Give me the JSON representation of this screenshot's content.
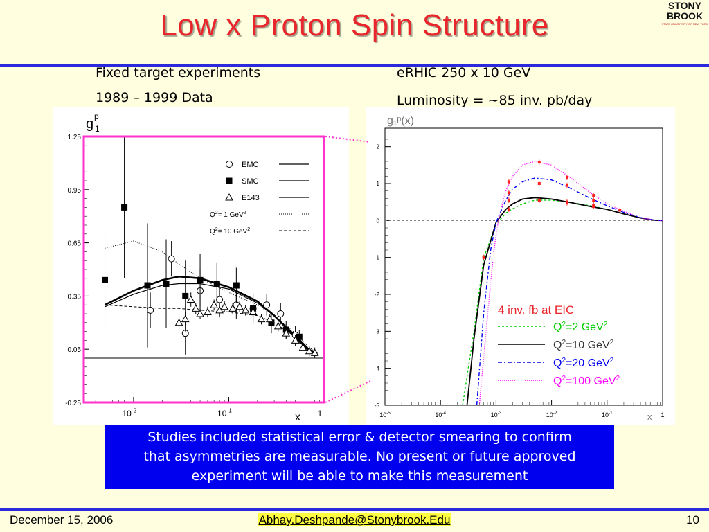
{
  "slide": {
    "title": "Low x Proton Spin Structure",
    "logo_line1": "STONY",
    "logo_line2": "BROOK",
    "logo_sub": "STATE UNIVERSITY OF NEW YORK",
    "left_heading1": "Fixed target experiments",
    "left_heading2": "1989 – 1999 Data",
    "right_heading1": "eRHIC 250 x 10 GeV",
    "right_heading2": "Luminosity = ~85 inv. pb/day",
    "caption": [
      "Studies included statistical error & detector smearing to confirm",
      "that asymmetries are measurable.  No present or future approved",
      "experiment will be able to make this measurement"
    ],
    "footer_date": "December 15, 2006",
    "footer_email": "Abhay.Deshpande@Stonybrook.Edu",
    "footer_page": "10",
    "colors": {
      "title": "#e8262b",
      "rule": "#2a2adc",
      "caption_bg": "#0000ee",
      "frame": "#ff33cc"
    }
  },
  "chart_data": [
    {
      "type": "scatter",
      "y_title_main": "g",
      "y_title_sup": "p",
      "y_title_sub": "1",
      "xlabel": "x",
      "x_scale": "log",
      "xlim": [
        0.003,
        1
      ],
      "ylim": [
        -0.25,
        1.25
      ],
      "y_ticks": [
        "1.25",
        "0.95",
        "0.65",
        "0.35",
        "0.05",
        "-0.25"
      ],
      "y_tick_values": [
        1.25,
        0.95,
        0.65,
        0.35,
        0.05,
        -0.25
      ],
      "x_ticks": [
        {
          "base": "10",
          "exp": "-2",
          "value": 0.01
        },
        {
          "base": "10",
          "exp": "-1",
          "value": 0.1
        },
        {
          "base": "1",
          "exp": "",
          "value": 1
        }
      ],
      "legend": [
        {
          "marker": "circle",
          "label": "EMC"
        },
        {
          "marker": "square",
          "label": "SMC"
        },
        {
          "marker": "triangle",
          "label": "E143"
        },
        {
          "marker": "dotted",
          "label_main": "Q",
          "label_sup": "2",
          "label_rest": "= 1 GeV",
          "label_sup2": "2"
        },
        {
          "marker": "dashed",
          "label_main": "Q",
          "label_sup": "2",
          "label_rest": "= 10 GeV",
          "label_sup2": "2"
        }
      ],
      "series": [
        {
          "name": "EMC",
          "marker": "circle",
          "points": [
            [
              0.015,
              0.27,
              0.1
            ],
            [
              0.025,
              0.56,
              0.1
            ],
            [
              0.035,
              0.14,
              0.12
            ],
            [
              0.05,
              0.38,
              0.12
            ],
            [
              0.08,
              0.33,
              0.1
            ],
            [
              0.12,
              0.3,
              0.08
            ],
            [
              0.18,
              0.28,
              0.08
            ],
            [
              0.25,
              0.3,
              0.06
            ],
            [
              0.35,
              0.25,
              0.06
            ],
            [
              0.5,
              0.13,
              0.05
            ]
          ]
        },
        {
          "name": "SMC",
          "marker": "square",
          "points": [
            [
              0.005,
              0.44,
              0.3
            ],
            [
              0.008,
              0.85,
              0.4
            ],
            [
              0.014,
              0.41,
              0.35
            ],
            [
              0.022,
              0.42,
              0.25
            ],
            [
              0.035,
              0.35,
              0.2
            ],
            [
              0.05,
              0.44,
              0.15
            ],
            [
              0.075,
              0.42,
              0.12
            ],
            [
              0.12,
              0.41,
              0.1
            ],
            [
              0.18,
              0.28,
              0.08
            ],
            [
              0.28,
              0.2,
              0.06
            ],
            [
              0.4,
              0.16,
              0.05
            ],
            [
              0.55,
              0.12,
              0.04
            ]
          ]
        },
        {
          "name": "E143",
          "marker": "triangle",
          "points": [
            [
              0.03,
              0.2,
              0.04
            ],
            [
              0.035,
              0.22,
              0.04
            ],
            [
              0.04,
              0.33,
              0.04
            ],
            [
              0.045,
              0.28,
              0.03
            ],
            [
              0.05,
              0.25,
              0.03
            ],
            [
              0.06,
              0.26,
              0.03
            ],
            [
              0.07,
              0.3,
              0.03
            ],
            [
              0.08,
              0.27,
              0.03
            ],
            [
              0.09,
              0.29,
              0.03
            ],
            [
              0.11,
              0.28,
              0.03
            ],
            [
              0.13,
              0.29,
              0.03
            ],
            [
              0.15,
              0.27,
              0.03
            ],
            [
              0.18,
              0.26,
              0.03
            ],
            [
              0.22,
              0.22,
              0.03
            ],
            [
              0.27,
              0.22,
              0.03
            ],
            [
              0.33,
              0.18,
              0.03
            ],
            [
              0.4,
              0.14,
              0.03
            ],
            [
              0.5,
              0.1,
              0.03
            ],
            [
              0.6,
              0.06,
              0.03
            ],
            [
              0.7,
              0.04,
              0.03
            ],
            [
              0.8,
              0.03,
              0.03
            ]
          ]
        }
      ],
      "curves": [
        {
          "style": "thick",
          "points": [
            [
              0.005,
              0.3
            ],
            [
              0.01,
              0.38
            ],
            [
              0.02,
              0.44
            ],
            [
              0.03,
              0.46
            ],
            [
              0.05,
              0.45
            ],
            [
              0.1,
              0.4
            ],
            [
              0.2,
              0.32
            ],
            [
              0.3,
              0.24
            ],
            [
              0.5,
              0.12
            ],
            [
              0.7,
              0.04
            ],
            [
              0.85,
              0.03
            ]
          ]
        },
        {
          "style": "solid",
          "points": [
            [
              0.005,
              0.29
            ],
            [
              0.01,
              0.36
            ],
            [
              0.02,
              0.41
            ],
            [
              0.03,
              0.42
            ],
            [
              0.05,
              0.42
            ],
            [
              0.1,
              0.39
            ],
            [
              0.2,
              0.31
            ],
            [
              0.3,
              0.24
            ],
            [
              0.5,
              0.13
            ],
            [
              0.7,
              0.05
            ],
            [
              0.85,
              0.03
            ]
          ]
        },
        {
          "style": "dotted",
          "points": [
            [
              0.005,
              0.62
            ],
            [
              0.01,
              0.66
            ],
            [
              0.02,
              0.6
            ],
            [
              0.03,
              0.53
            ],
            [
              0.05,
              0.45
            ],
            [
              0.1,
              0.37
            ],
            [
              0.2,
              0.3
            ],
            [
              0.3,
              0.24
            ],
            [
              0.5,
              0.14
            ],
            [
              0.7,
              0.06
            ],
            [
              0.85,
              0.03
            ]
          ]
        },
        {
          "style": "dashed",
          "points": [
            [
              0.005,
              0.3
            ],
            [
              0.01,
              0.29
            ],
            [
              0.02,
              0.28
            ],
            [
              0.03,
              0.28
            ],
            [
              0.05,
              0.27
            ],
            [
              0.1,
              0.26
            ],
            [
              0.2,
              0.24
            ],
            [
              0.3,
              0.2
            ],
            [
              0.5,
              0.12
            ],
            [
              0.7,
              0.05
            ],
            [
              0.85,
              0.03
            ]
          ]
        }
      ],
      "zero_line": 0.0
    },
    {
      "type": "line",
      "y_title": "g₁ᵖ(x)",
      "xlabel": "x",
      "x_scale": "log",
      "xlim": [
        1e-05,
        1
      ],
      "ylim": [
        -5,
        2.5
      ],
      "y_ticks": [
        "2",
        "1",
        "0",
        "-1",
        "-2",
        "-3",
        "-4",
        "-5"
      ],
      "y_tick_values": [
        2,
        1,
        0,
        -1,
        -2,
        -3,
        -4,
        -5
      ],
      "x_ticks": [
        {
          "label": "10",
          "exp": "-5",
          "value": 1e-05
        },
        {
          "label": "10",
          "exp": "-4",
          "value": 0.0001
        },
        {
          "label": "10",
          "exp": "-3",
          "value": 0.001
        },
        {
          "label": "10",
          "exp": "-2",
          "value": 0.01
        },
        {
          "label": "10",
          "exp": "-1",
          "value": 0.1
        },
        {
          "label": "1",
          "exp": "",
          "value": 1
        }
      ],
      "annotation": "4 inv. fb at EIC",
      "legend": [
        {
          "name": "Q²=2 GeV²",
          "color": "#00cc00",
          "dash": "3,3",
          "pre": "Q",
          "sup": "2",
          "mid": "=2 GeV",
          "sup2": "2"
        },
        {
          "name": "Q²=10 GeV²",
          "color": "#000000",
          "dash": "",
          "pre": "Q",
          "sup": "2",
          "mid": "=10 GeV",
          "sup2": "2"
        },
        {
          "name": "Q²=20 GeV²",
          "color": "#0000ee",
          "dash": "6,3,2,3",
          "pre": "Q",
          "sup": "2",
          "mid": "=20 GeV",
          "sup2": "2"
        },
        {
          "name": "Q²=100 GeV²",
          "color": "#ff00ff",
          "dash": "1,2",
          "pre": "Q",
          "sup": "2",
          "mid": "=100 GeV",
          "sup2": "2"
        }
      ],
      "series": [
        {
          "name": "Q²=2 GeV²",
          "color": "#00cc00",
          "x": [
            0.00025,
            0.0004,
            0.0006,
            0.001,
            0.0015,
            0.002,
            0.003,
            0.005,
            0.01,
            0.02,
            0.05,
            0.1,
            0.2,
            0.4,
            0.7,
            1
          ],
          "y": [
            -5,
            -3,
            -1,
            -0.1,
            0.2,
            0.32,
            0.45,
            0.55,
            0.55,
            0.5,
            0.4,
            0.3,
            0.18,
            0.07,
            0.01,
            0
          ]
        },
        {
          "name": "Q²=10 GeV²",
          "color": "#000000",
          "x": [
            0.0003,
            0.0004,
            0.0006,
            0.001,
            0.0015,
            0.002,
            0.003,
            0.005,
            0.01,
            0.02,
            0.05,
            0.1,
            0.2,
            0.4,
            0.7,
            1
          ],
          "y": [
            -5,
            -3.2,
            -1.2,
            -0.05,
            0.3,
            0.45,
            0.58,
            0.62,
            0.58,
            0.5,
            0.38,
            0.3,
            0.18,
            0.07,
            0.01,
            0
          ]
        },
        {
          "name": "Q²=20 GeV²",
          "color": "#0000ee",
          "x": [
            0.00045,
            0.0006,
            0.0008,
            0.001,
            0.0015,
            0.002,
            0.003,
            0.005,
            0.01,
            0.02,
            0.05,
            0.1,
            0.2,
            0.4,
            0.7,
            1
          ],
          "y": [
            -5,
            -2.5,
            -0.8,
            -0.05,
            0.55,
            0.85,
            1.05,
            1.15,
            1.1,
            0.9,
            0.6,
            0.4,
            0.22,
            0.08,
            0.01,
            0
          ]
        },
        {
          "name": "Q²=100 GeV²",
          "color": "#ff00ff",
          "x": [
            0.0005,
            0.0007,
            0.0009,
            0.0011,
            0.0015,
            0.002,
            0.003,
            0.005,
            0.01,
            0.02,
            0.05,
            0.1,
            0.2,
            0.4,
            0.7,
            1
          ],
          "y": [
            -5,
            -2.6,
            -0.9,
            0,
            0.8,
            1.2,
            1.5,
            1.6,
            1.5,
            1.2,
            0.75,
            0.45,
            0.25,
            0.08,
            0.01,
            0
          ]
        }
      ],
      "points": [
        {
          "series": "Q²=2 GeV²",
          "x": [
            0.0006,
            0.0017,
            0.006,
            0.019,
            0.057,
            0.17
          ],
          "y": [
            -1,
            0.3,
            0.55,
            0.48,
            0.38,
            0.28
          ]
        },
        {
          "series": "Q²=10 GeV²",
          "x": [
            0.0017,
            0.006,
            0.019,
            0.057
          ],
          "y": [
            0.55,
            0.55,
            0.5,
            0.4
          ]
        },
        {
          "series": "Q²=20 GeV²",
          "x": [
            0.0017,
            0.006,
            0.019,
            0.057
          ],
          "y": [
            0.75,
            1.0,
            0.95,
            0.55
          ]
        },
        {
          "series": "Q²=100 GeV²",
          "x": [
            0.0017,
            0.006,
            0.019,
            0.057
          ],
          "y": [
            1.05,
            1.58,
            1.17,
            0.68
          ]
        }
      ]
    }
  ]
}
